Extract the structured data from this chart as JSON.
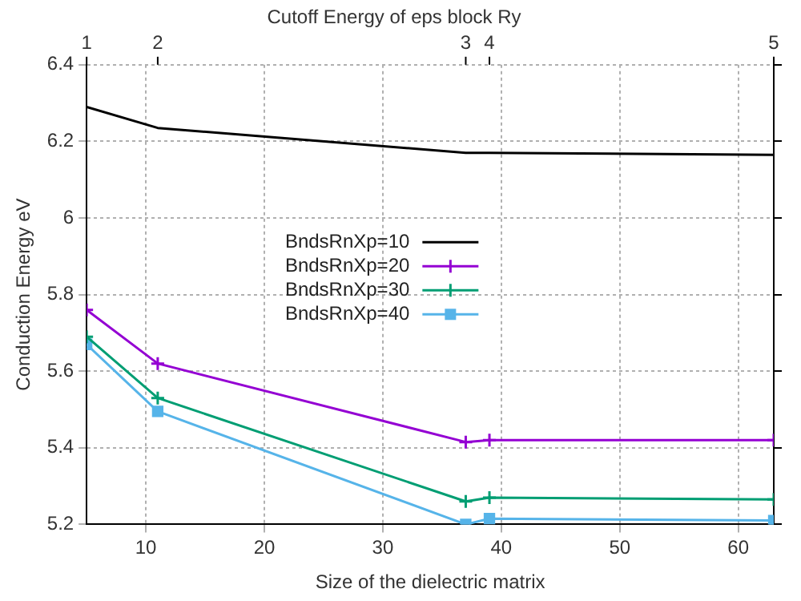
{
  "chart_data": {
    "type": "line",
    "xlabel": "Size of the dielectric matrix",
    "ylabel": "Conduction Energy eV",
    "title": "Cutoff Energy of eps block Ry",
    "annotations": [
      "1",
      "2",
      "3",
      "4",
      "5"
    ],
    "x": [
      5,
      11,
      37,
      39,
      63
    ],
    "series": [
      {
        "name": "BndsRnXp=10",
        "color": "#000000",
        "marker": "none",
        "values": [
          6.29,
          6.235,
          6.17,
          6.17,
          6.165
        ]
      },
      {
        "name": "BndsRnXp=20",
        "color": "#9400d3",
        "marker": "cross",
        "values": [
          5.76,
          5.62,
          5.415,
          5.42,
          5.42
        ]
      },
      {
        "name": "BndsRnXp=30",
        "color": "#009e73",
        "marker": "cross",
        "values": [
          5.69,
          5.53,
          5.26,
          5.27,
          5.265
        ]
      },
      {
        "name": "BndsRnXp=40",
        "color": "#56b4e9",
        "marker": "square",
        "values": [
          5.67,
          5.495,
          5.2,
          5.215,
          5.21
        ]
      }
    ],
    "xlim": [
      5,
      63
    ],
    "xticks": [
      10,
      20,
      30,
      40,
      50,
      60
    ],
    "ylim": [
      5.2,
      6.4
    ],
    "yticks": [
      5.2,
      5.4,
      5.6,
      5.8,
      6,
      6.2,
      6.4
    ],
    "grid": true,
    "legend": "left",
    "line_style": "solid"
  }
}
